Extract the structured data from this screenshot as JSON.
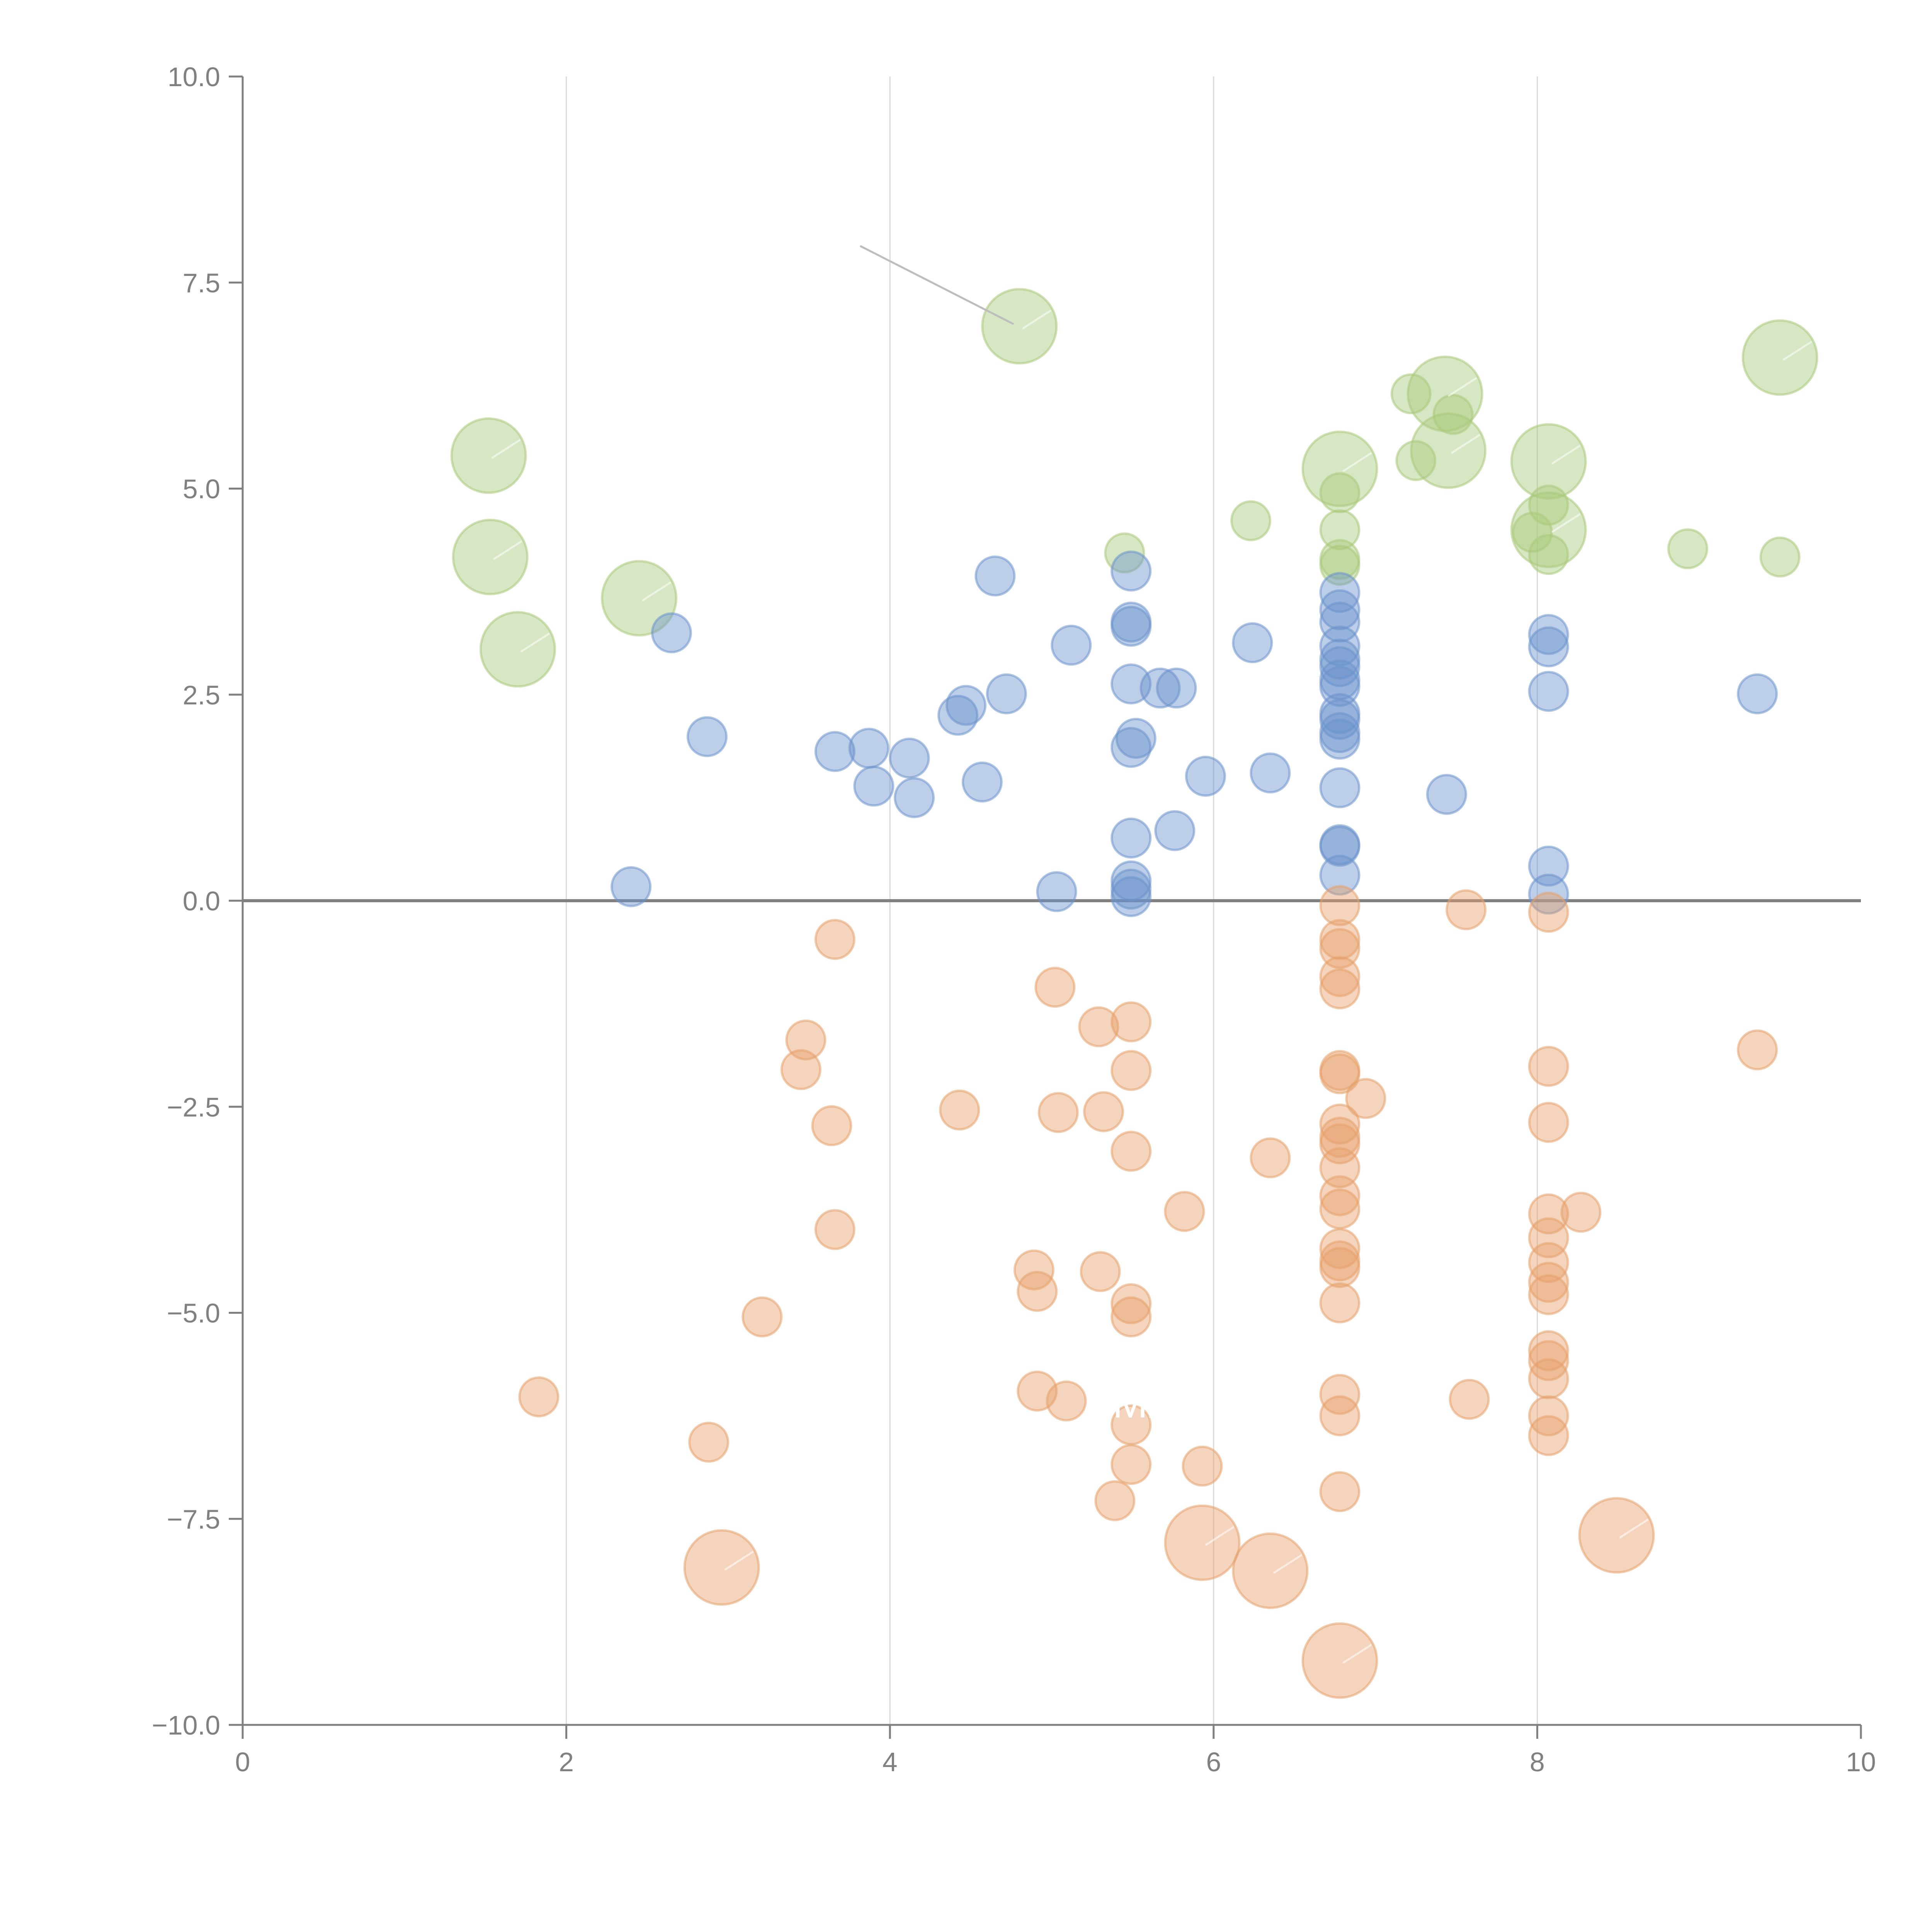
{
  "chart_data": {
    "type": "scatter",
    "title": "",
    "xlabel": "",
    "ylabel": "",
    "xlim": [
      0,
      10
    ],
    "ylim": [
      -10,
      10
    ],
    "grid": "vertical",
    "legend": "none",
    "x_ticks": [
      "0",
      "2",
      "4",
      "6",
      "8",
      "10"
    ],
    "y_ticks": [
      "10.0",
      "7.5",
      "5.0",
      "2.5",
      "0.0",
      "−2.5",
      "−5.0",
      "−7.5",
      "−10.0"
    ],
    "x_tick_values": [
      0,
      2,
      4,
      6,
      8,
      10
    ],
    "y_tick_values": [
      10,
      7.5,
      5,
      2.5,
      0,
      -2.5,
      -5,
      -7.5,
      -10
    ],
    "zero_line": 0,
    "colors": {
      "green": "#a9c97a",
      "blue": "#6b93cc",
      "orange": "#e6a06a"
    },
    "series": [
      {
        "name": "green",
        "color": "#a9c97a",
        "points": [
          {
            "x": 1.52,
            "y": 5.4,
            "s": 3
          },
          {
            "x": 1.53,
            "y": 4.17,
            "s": 3
          },
          {
            "x": 1.7,
            "y": 3.05,
            "s": 3
          },
          {
            "x": 2.45,
            "y": 3.67,
            "s": 3
          },
          {
            "x": 4.8,
            "y": 6.97,
            "s": 3
          },
          {
            "x": 5.45,
            "y": 4.22,
            "s": 1
          },
          {
            "x": 6.23,
            "y": 4.61,
            "s": 1
          },
          {
            "x": 6.78,
            "y": 5.24,
            "s": 3
          },
          {
            "x": 6.78,
            "y": 4.95,
            "s": 1
          },
          {
            "x": 6.78,
            "y": 4.5,
            "s": 1
          },
          {
            "x": 6.78,
            "y": 4.14,
            "s": 1
          },
          {
            "x": 6.78,
            "y": 4.07,
            "s": 1
          },
          {
            "x": 7.22,
            "y": 6.15,
            "s": 1
          },
          {
            "x": 7.43,
            "y": 6.15,
            "s": 3
          },
          {
            "x": 7.25,
            "y": 5.34,
            "s": 1
          },
          {
            "x": 7.45,
            "y": 5.46,
            "s": 3
          },
          {
            "x": 7.48,
            "y": 5.9,
            "s": 1
          },
          {
            "x": 8.07,
            "y": 5.33,
            "s": 3
          },
          {
            "x": 8.07,
            "y": 4.5,
            "s": 3
          },
          {
            "x": 8.07,
            "y": 4.8,
            "s": 1
          },
          {
            "x": 7.97,
            "y": 4.47,
            "s": 1
          },
          {
            "x": 8.07,
            "y": 4.2,
            "s": 1
          },
          {
            "x": 8.93,
            "y": 4.27,
            "s": 1
          },
          {
            "x": 9.5,
            "y": 4.17,
            "s": 1
          },
          {
            "x": 9.5,
            "y": 6.59,
            "s": 3
          }
        ]
      },
      {
        "name": "blue",
        "color": "#6b93cc",
        "points": [
          {
            "x": 2.4,
            "y": 0.17,
            "s": 1
          },
          {
            "x": 2.65,
            "y": 3.25,
            "s": 1
          },
          {
            "x": 2.87,
            "y": 1.99,
            "s": 1
          },
          {
            "x": 3.66,
            "y": 1.81,
            "s": 1
          },
          {
            "x": 3.87,
            "y": 1.85,
            "s": 1
          },
          {
            "x": 3.9,
            "y": 1.39,
            "s": 1
          },
          {
            "x": 4.12,
            "y": 1.73,
            "s": 1
          },
          {
            "x": 4.15,
            "y": 1.25,
            "s": 1
          },
          {
            "x": 4.42,
            "y": 2.25,
            "s": 1
          },
          {
            "x": 4.47,
            "y": 2.37,
            "s": 1
          },
          {
            "x": 4.57,
            "y": 1.44,
            "s": 1
          },
          {
            "x": 4.65,
            "y": 3.94,
            "s": 1
          },
          {
            "x": 4.72,
            "y": 2.51,
            "s": 1
          },
          {
            "x": 5.03,
            "y": 0.11,
            "s": 1
          },
          {
            "x": 5.12,
            "y": 3.1,
            "s": 1
          },
          {
            "x": 5.49,
            "y": 4.0,
            "s": 1
          },
          {
            "x": 5.49,
            "y": 3.38,
            "s": 1
          },
          {
            "x": 5.49,
            "y": 3.33,
            "s": 1
          },
          {
            "x": 5.49,
            "y": 2.63,
            "s": 1
          },
          {
            "x": 5.52,
            "y": 1.97,
            "s": 1
          },
          {
            "x": 5.49,
            "y": 1.86,
            "s": 1
          },
          {
            "x": 5.49,
            "y": 0.76,
            "s": 1
          },
          {
            "x": 5.49,
            "y": 0.24,
            "s": 1
          },
          {
            "x": 5.49,
            "y": 0.14,
            "s": 1
          },
          {
            "x": 5.49,
            "y": 0.05,
            "s": 1
          },
          {
            "x": 5.67,
            "y": 2.58,
            "s": 1
          },
          {
            "x": 5.77,
            "y": 2.58,
            "s": 1
          },
          {
            "x": 5.76,
            "y": 0.85,
            "s": 1
          },
          {
            "x": 5.95,
            "y": 1.51,
            "s": 1
          },
          {
            "x": 6.24,
            "y": 3.13,
            "s": 1
          },
          {
            "x": 6.35,
            "y": 1.55,
            "s": 1
          },
          {
            "x": 6.78,
            "y": 3.74,
            "s": 1
          },
          {
            "x": 6.78,
            "y": 3.53,
            "s": 1
          },
          {
            "x": 6.78,
            "y": 3.38,
            "s": 1
          },
          {
            "x": 6.78,
            "y": 3.09,
            "s": 1
          },
          {
            "x": 6.78,
            "y": 2.93,
            "s": 1
          },
          {
            "x": 6.78,
            "y": 2.84,
            "s": 1
          },
          {
            "x": 6.78,
            "y": 2.68,
            "s": 1
          },
          {
            "x": 6.78,
            "y": 2.6,
            "s": 1
          },
          {
            "x": 6.78,
            "y": 2.27,
            "s": 1
          },
          {
            "x": 6.78,
            "y": 2.2,
            "s": 1
          },
          {
            "x": 6.78,
            "y": 2.04,
            "s": 1
          },
          {
            "x": 6.78,
            "y": 1.96,
            "s": 1
          },
          {
            "x": 6.78,
            "y": 1.37,
            "s": 1
          },
          {
            "x": 6.78,
            "y": 0.68,
            "s": 1
          },
          {
            "x": 6.78,
            "y": 0.66,
            "s": 1
          },
          {
            "x": 6.78,
            "y": 0.31,
            "s": 1
          },
          {
            "x": 7.44,
            "y": 1.29,
            "s": 1
          },
          {
            "x": 8.07,
            "y": 3.23,
            "s": 1
          },
          {
            "x": 8.07,
            "y": 3.08,
            "s": 1
          },
          {
            "x": 8.07,
            "y": 2.54,
            "s": 1
          },
          {
            "x": 8.07,
            "y": 0.42,
            "s": 1
          },
          {
            "x": 8.07,
            "y": 0.08,
            "s": 1
          },
          {
            "x": 9.36,
            "y": 2.51,
            "s": 1
          }
        ]
      },
      {
        "name": "orange",
        "color": "#e6a06a",
        "points": [
          {
            "x": 1.83,
            "y": -6.02,
            "s": 1
          },
          {
            "x": 2.88,
            "y": -6.57,
            "s": 1
          },
          {
            "x": 2.96,
            "y": -8.09,
            "s": 3
          },
          {
            "x": 3.21,
            "y": -5.05,
            "s": 1
          },
          {
            "x": 3.45,
            "y": -2.05,
            "s": 1
          },
          {
            "x": 3.48,
            "y": -1.69,
            "s": 1
          },
          {
            "x": 3.64,
            "y": -2.73,
            "s": 1
          },
          {
            "x": 3.66,
            "y": -0.47,
            "s": 1
          },
          {
            "x": 3.66,
            "y": -3.99,
            "s": 1
          },
          {
            "x": 4.43,
            "y": -2.54,
            "s": 1
          },
          {
            "x": 4.89,
            "y": -4.48,
            "s": 1
          },
          {
            "x": 4.91,
            "y": -4.74,
            "s": 1
          },
          {
            "x": 4.91,
            "y": -5.95,
            "s": 1
          },
          {
            "x": 5.02,
            "y": -1.05,
            "s": 1
          },
          {
            "x": 5.04,
            "y": -2.57,
            "s": 1
          },
          {
            "x": 5.09,
            "y": -6.07,
            "s": 1
          },
          {
            "x": 5.29,
            "y": -1.53,
            "s": 1
          },
          {
            "x": 5.3,
            "y": -4.5,
            "s": 1
          },
          {
            "x": 5.32,
            "y": -2.56,
            "s": 1
          },
          {
            "x": 5.39,
            "y": -7.28,
            "s": 1
          },
          {
            "x": 5.49,
            "y": -1.47,
            "s": 1
          },
          {
            "x": 5.49,
            "y": -2.06,
            "s": 1
          },
          {
            "x": 5.49,
            "y": -3.04,
            "s": 1
          },
          {
            "x": 5.49,
            "y": -4.89,
            "s": 1
          },
          {
            "x": 5.49,
            "y": -5.05,
            "s": 1
          },
          {
            "x": 5.49,
            "y": -6.36,
            "s": 1
          },
          {
            "x": 5.49,
            "y": -6.84,
            "s": 1
          },
          {
            "x": 5.82,
            "y": -3.77,
            "s": 1
          },
          {
            "x": 5.93,
            "y": -7.79,
            "s": 3
          },
          {
            "x": 5.93,
            "y": -6.86,
            "s": 1
          },
          {
            "x": 6.35,
            "y": -3.12,
            "s": 1
          },
          {
            "x": 6.35,
            "y": -8.13,
            "s": 3
          },
          {
            "x": 6.78,
            "y": -0.06,
            "s": 1
          },
          {
            "x": 6.78,
            "y": -0.47,
            "s": 1
          },
          {
            "x": 6.78,
            "y": -0.58,
            "s": 1
          },
          {
            "x": 6.78,
            "y": -0.92,
            "s": 1
          },
          {
            "x": 6.78,
            "y": -1.07,
            "s": 1
          },
          {
            "x": 6.78,
            "y": -2.06,
            "s": 1
          },
          {
            "x": 6.78,
            "y": -2.1,
            "s": 1
          },
          {
            "x": 6.78,
            "y": -2.71,
            "s": 1
          },
          {
            "x": 6.78,
            "y": -2.87,
            "s": 1
          },
          {
            "x": 6.78,
            "y": -2.95,
            "s": 1
          },
          {
            "x": 6.78,
            "y": -3.24,
            "s": 1
          },
          {
            "x": 6.78,
            "y": -3.58,
            "s": 1
          },
          {
            "x": 6.78,
            "y": -3.74,
            "s": 1
          },
          {
            "x": 6.78,
            "y": -4.22,
            "s": 1
          },
          {
            "x": 6.78,
            "y": -4.37,
            "s": 1
          },
          {
            "x": 6.78,
            "y": -4.45,
            "s": 1
          },
          {
            "x": 6.78,
            "y": -4.88,
            "s": 1
          },
          {
            "x": 6.78,
            "y": -5.99,
            "s": 1
          },
          {
            "x": 6.78,
            "y": -6.25,
            "s": 1
          },
          {
            "x": 6.78,
            "y": -7.17,
            "s": 1
          },
          {
            "x": 6.78,
            "y": -9.22,
            "s": 3
          },
          {
            "x": 6.94,
            "y": -2.4,
            "s": 1
          },
          {
            "x": 7.56,
            "y": -0.11,
            "s": 1
          },
          {
            "x": 7.58,
            "y": -6.05,
            "s": 1
          },
          {
            "x": 8.07,
            "y": -0.14,
            "s": 1
          },
          {
            "x": 8.07,
            "y": -2.01,
            "s": 1
          },
          {
            "x": 8.07,
            "y": -2.69,
            "s": 1
          },
          {
            "x": 8.07,
            "y": -3.8,
            "s": 1
          },
          {
            "x": 8.07,
            "y": -4.09,
            "s": 1
          },
          {
            "x": 8.07,
            "y": -4.39,
            "s": 1
          },
          {
            "x": 8.07,
            "y": -4.63,
            "s": 1
          },
          {
            "x": 8.07,
            "y": -4.78,
            "s": 1
          },
          {
            "x": 8.07,
            "y": -5.46,
            "s": 1
          },
          {
            "x": 8.07,
            "y": -5.58,
            "s": 1
          },
          {
            "x": 8.07,
            "y": -5.8,
            "s": 1
          },
          {
            "x": 8.07,
            "y": -6.25,
            "s": 1
          },
          {
            "x": 8.07,
            "y": -6.49,
            "s": 1
          },
          {
            "x": 8.27,
            "y": -3.78,
            "s": 1
          },
          {
            "x": 8.49,
            "y": -7.7,
            "s": 3
          },
          {
            "x": 9.36,
            "y": -1.81,
            "s": 1
          }
        ]
      }
    ],
    "annotations": [
      {
        "text": "SMX",
        "x": 5.2,
        "y": -6.27,
        "color": "#ffffff"
      }
    ],
    "leader_lines": [
      {
        "from": [
          4.76,
          7.0
        ],
        "to": [
          3.82,
          7.94
        ],
        "color": "#bdbdbd"
      }
    ]
  }
}
